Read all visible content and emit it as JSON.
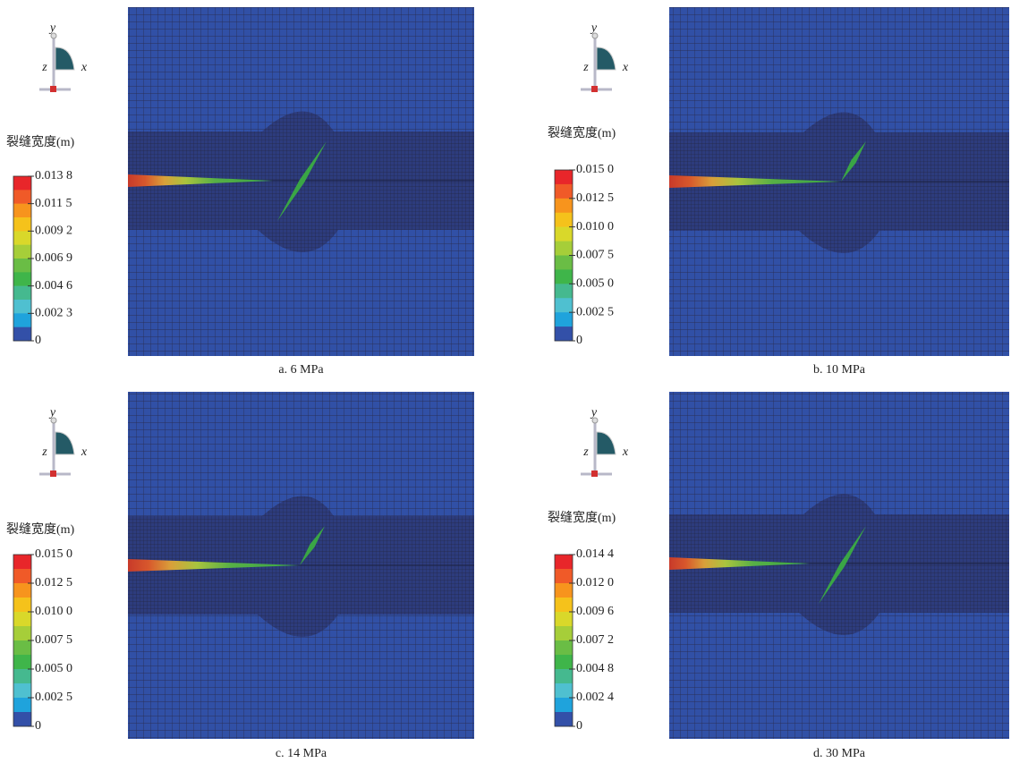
{
  "panels": [
    {
      "caption": "a. 6 MPa",
      "legend_title": "裂缝宽度(m)",
      "legend_labels": [
        "0.013 8",
        "0.011 5",
        "0.009 2",
        "0.006 9",
        "0.004 6",
        "0.002 3",
        "0"
      ],
      "axes": {
        "y": "y",
        "z": "z",
        "x": "x"
      }
    },
    {
      "caption": "b. 10 MPa",
      "legend_title": "裂缝宽度(m)",
      "legend_labels": [
        "0.015 0",
        "0.012 5",
        "0.010 0",
        "0.007 5",
        "0.005 0",
        "0.002 5",
        "0"
      ],
      "axes": {
        "y": "y",
        "z": "z",
        "x": "x"
      }
    },
    {
      "caption": "c. 14 MPa",
      "legend_title": "裂缝宽度(m)",
      "legend_labels": [
        "0.015 0",
        "0.012 5",
        "0.010 0",
        "0.007 5",
        "0.005 0",
        "0.002 5",
        "0"
      ],
      "axes": {
        "y": "y",
        "z": "z",
        "x": "x"
      }
    },
    {
      "caption": "d. 30 MPa",
      "legend_title": "裂缝宽度(m)",
      "legend_labels": [
        "0.014 4",
        "0.012 0",
        "0.009 6",
        "0.007 2",
        "0.004 8",
        "0.002 4",
        "0"
      ],
      "axes": {
        "y": "y",
        "z": "z",
        "x": "x"
      }
    }
  ]
}
